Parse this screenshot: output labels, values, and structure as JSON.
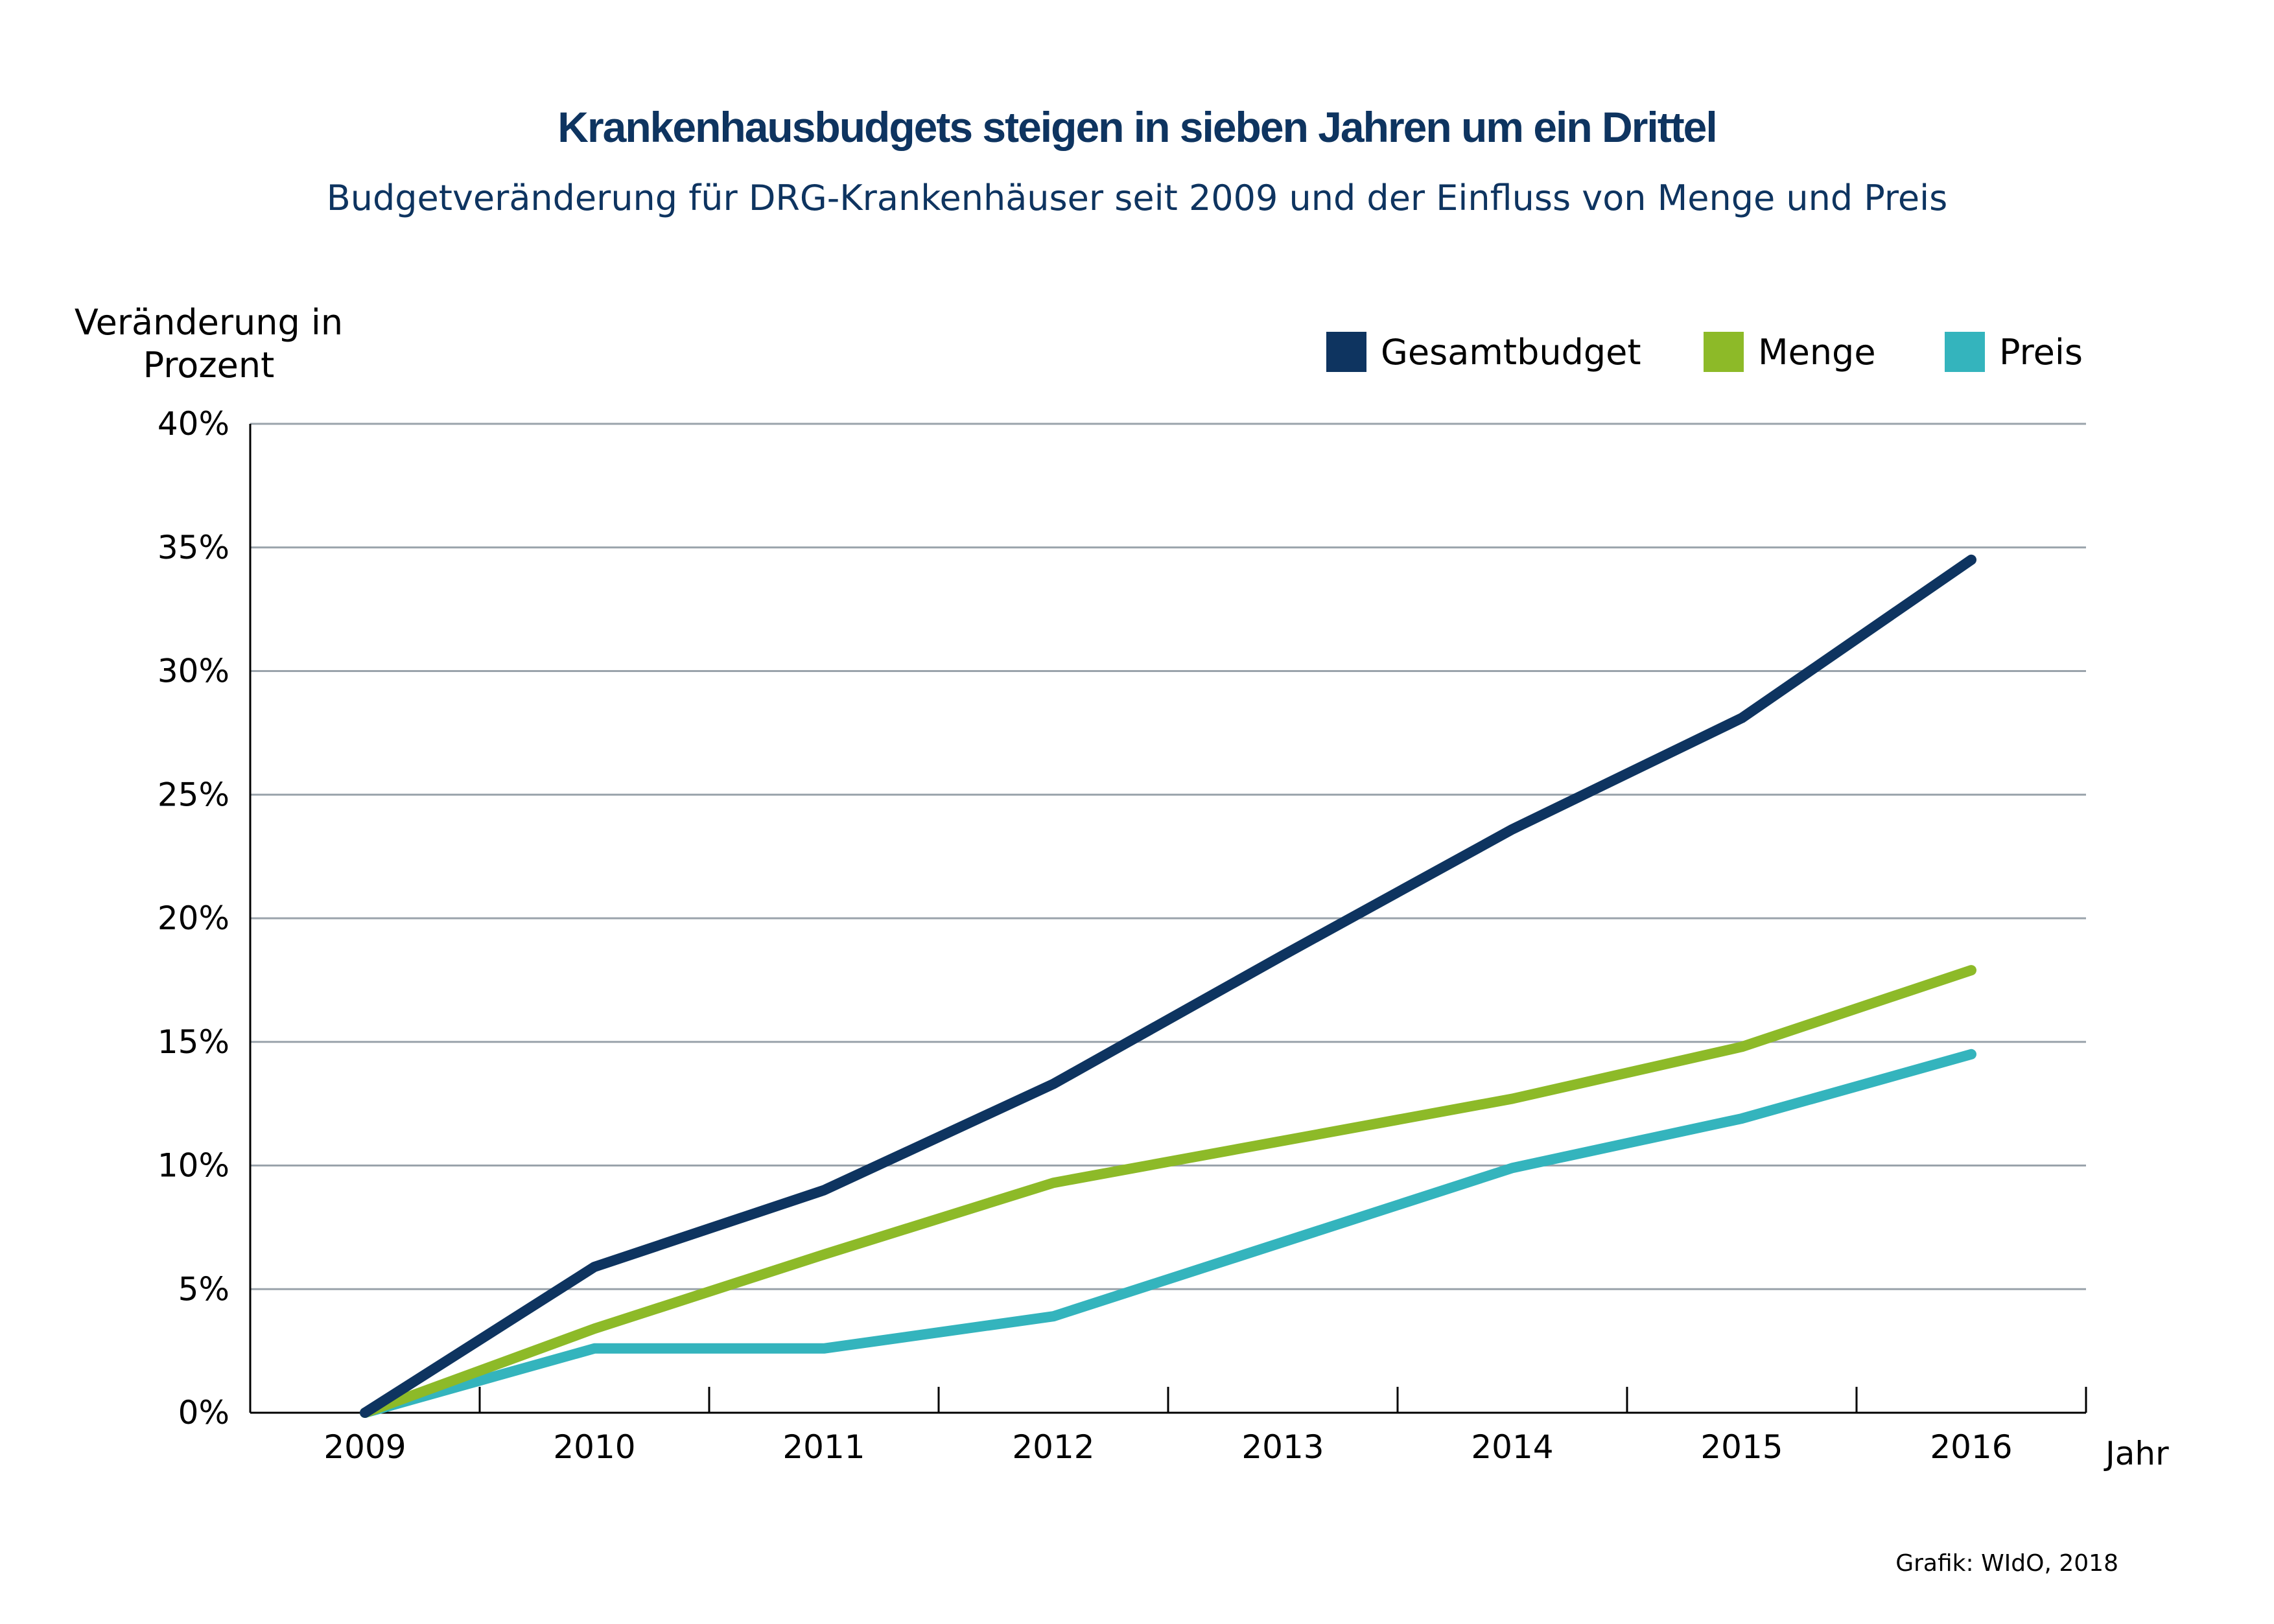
{
  "chart_data": {
    "type": "line",
    "title": "Krankenhausbudgets steigen in sieben Jahren um ein Drittel",
    "subtitle": "Budgetveränderung für DRG-Krankenhäuser seit 2009 und der Einfluss von Menge und Preis",
    "ylabel": [
      "Veränderung in",
      "Prozent"
    ],
    "xlabel": "Jahr",
    "x": [
      "2009",
      "2010",
      "2011",
      "2012",
      "2013",
      "2014",
      "2015",
      "2016"
    ],
    "ylim": [
      0,
      40
    ],
    "yticks": [
      0,
      5,
      10,
      15,
      20,
      25,
      30,
      35,
      40
    ],
    "ytick_labels": [
      "0%",
      "5%",
      "10%",
      "15%",
      "20%",
      "25%",
      "30%",
      "35%",
      "40%"
    ],
    "grid": true,
    "legend_position": "top-right",
    "series": [
      {
        "name": "Gesamtbudget",
        "color": "#0e3460",
        "values": [
          0,
          5.9,
          9.0,
          13.3,
          18.5,
          23.6,
          28.1,
          34.5
        ]
      },
      {
        "name": "Menge",
        "color": "#8dba28",
        "values": [
          0,
          3.4,
          6.4,
          9.3,
          11.0,
          12.7,
          14.8,
          17.9
        ]
      },
      {
        "name": "Preis",
        "color": "#34b4bd",
        "values": [
          0,
          2.6,
          2.6,
          3.9,
          6.9,
          9.9,
          11.9,
          14.5
        ]
      }
    ]
  },
  "credit": "Grafik: WIdO, 2018"
}
